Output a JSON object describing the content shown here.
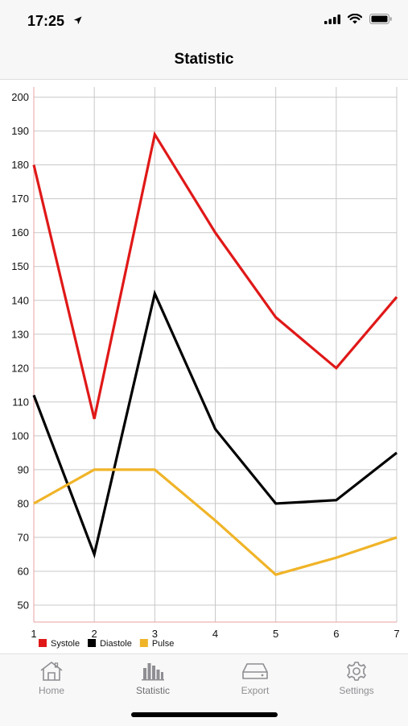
{
  "status": {
    "time": "17:25"
  },
  "nav": {
    "title": "Statistic"
  },
  "chart_data": {
    "type": "line",
    "x": [
      1,
      2,
      3,
      4,
      5,
      6,
      7
    ],
    "ylim": [
      45,
      203
    ],
    "yticks": [
      50,
      60,
      70,
      80,
      90,
      100,
      110,
      120,
      130,
      140,
      150,
      160,
      170,
      180,
      190,
      200
    ],
    "xticks": [
      1,
      2,
      3,
      4,
      5,
      6,
      7
    ],
    "grid": true,
    "legend_position": "bottom-left",
    "series": [
      {
        "name": "Systole",
        "color": "#e01818",
        "values": [
          180,
          105,
          189,
          160,
          135,
          120,
          141
        ]
      },
      {
        "name": "Diastole",
        "color": "#000000",
        "values": [
          112,
          65,
          142,
          102,
          80,
          81,
          95
        ]
      },
      {
        "name": "Pulse",
        "color": "#f0b428",
        "values": [
          80,
          90,
          90,
          75,
          59,
          64,
          70
        ]
      }
    ]
  },
  "tabs": [
    {
      "label": "Home",
      "icon": "home-icon",
      "active": false
    },
    {
      "label": "Statistic",
      "icon": "bar-chart-icon",
      "active": true
    },
    {
      "label": "Export",
      "icon": "drive-icon",
      "active": false
    },
    {
      "label": "Settings",
      "icon": "gear-icon",
      "active": false
    }
  ]
}
